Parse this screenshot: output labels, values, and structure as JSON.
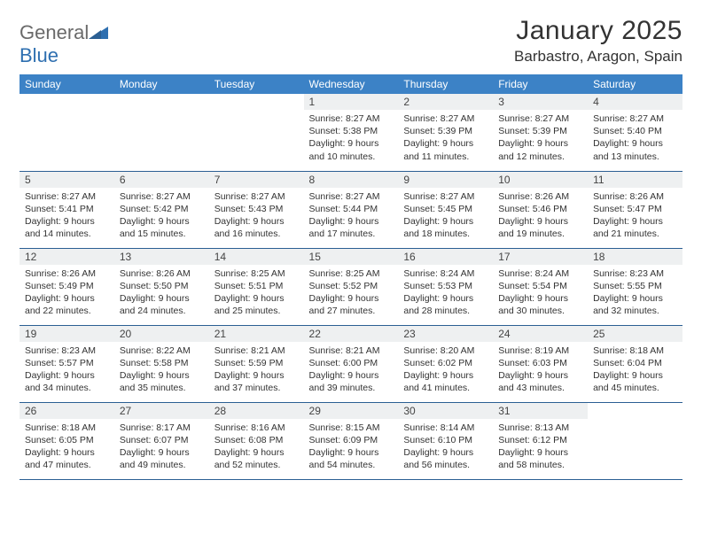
{
  "brand": {
    "part1": "General",
    "part2": "Blue"
  },
  "title": "January 2025",
  "subtitle": "Barbastro, Aragon, Spain",
  "colors": {
    "header_bg": "#3c82c6",
    "row_separator": "#2b5f93",
    "daynum_bg": "#eef0f1",
    "brand_gray": "#6a6a6a",
    "brand_blue": "#2e6fb0",
    "text": "#333333",
    "white": "#ffffff"
  },
  "weekdays": [
    "Sunday",
    "Monday",
    "Tuesday",
    "Wednesday",
    "Thursday",
    "Friday",
    "Saturday"
  ],
  "weeks": [
    [
      {
        "day": "",
        "sunrise": "",
        "sunset": "",
        "daylight": ""
      },
      {
        "day": "",
        "sunrise": "",
        "sunset": "",
        "daylight": ""
      },
      {
        "day": "",
        "sunrise": "",
        "sunset": "",
        "daylight": ""
      },
      {
        "day": "1",
        "sunrise": "Sunrise: 8:27 AM",
        "sunset": "Sunset: 5:38 PM",
        "daylight": "Daylight: 9 hours and 10 minutes."
      },
      {
        "day": "2",
        "sunrise": "Sunrise: 8:27 AM",
        "sunset": "Sunset: 5:39 PM",
        "daylight": "Daylight: 9 hours and 11 minutes."
      },
      {
        "day": "3",
        "sunrise": "Sunrise: 8:27 AM",
        "sunset": "Sunset: 5:39 PM",
        "daylight": "Daylight: 9 hours and 12 minutes."
      },
      {
        "day": "4",
        "sunrise": "Sunrise: 8:27 AM",
        "sunset": "Sunset: 5:40 PM",
        "daylight": "Daylight: 9 hours and 13 minutes."
      }
    ],
    [
      {
        "day": "5",
        "sunrise": "Sunrise: 8:27 AM",
        "sunset": "Sunset: 5:41 PM",
        "daylight": "Daylight: 9 hours and 14 minutes."
      },
      {
        "day": "6",
        "sunrise": "Sunrise: 8:27 AM",
        "sunset": "Sunset: 5:42 PM",
        "daylight": "Daylight: 9 hours and 15 minutes."
      },
      {
        "day": "7",
        "sunrise": "Sunrise: 8:27 AM",
        "sunset": "Sunset: 5:43 PM",
        "daylight": "Daylight: 9 hours and 16 minutes."
      },
      {
        "day": "8",
        "sunrise": "Sunrise: 8:27 AM",
        "sunset": "Sunset: 5:44 PM",
        "daylight": "Daylight: 9 hours and 17 minutes."
      },
      {
        "day": "9",
        "sunrise": "Sunrise: 8:27 AM",
        "sunset": "Sunset: 5:45 PM",
        "daylight": "Daylight: 9 hours and 18 minutes."
      },
      {
        "day": "10",
        "sunrise": "Sunrise: 8:26 AM",
        "sunset": "Sunset: 5:46 PM",
        "daylight": "Daylight: 9 hours and 19 minutes."
      },
      {
        "day": "11",
        "sunrise": "Sunrise: 8:26 AM",
        "sunset": "Sunset: 5:47 PM",
        "daylight": "Daylight: 9 hours and 21 minutes."
      }
    ],
    [
      {
        "day": "12",
        "sunrise": "Sunrise: 8:26 AM",
        "sunset": "Sunset: 5:49 PM",
        "daylight": "Daylight: 9 hours and 22 minutes."
      },
      {
        "day": "13",
        "sunrise": "Sunrise: 8:26 AM",
        "sunset": "Sunset: 5:50 PM",
        "daylight": "Daylight: 9 hours and 24 minutes."
      },
      {
        "day": "14",
        "sunrise": "Sunrise: 8:25 AM",
        "sunset": "Sunset: 5:51 PM",
        "daylight": "Daylight: 9 hours and 25 minutes."
      },
      {
        "day": "15",
        "sunrise": "Sunrise: 8:25 AM",
        "sunset": "Sunset: 5:52 PM",
        "daylight": "Daylight: 9 hours and 27 minutes."
      },
      {
        "day": "16",
        "sunrise": "Sunrise: 8:24 AM",
        "sunset": "Sunset: 5:53 PM",
        "daylight": "Daylight: 9 hours and 28 minutes."
      },
      {
        "day": "17",
        "sunrise": "Sunrise: 8:24 AM",
        "sunset": "Sunset: 5:54 PM",
        "daylight": "Daylight: 9 hours and 30 minutes."
      },
      {
        "day": "18",
        "sunrise": "Sunrise: 8:23 AM",
        "sunset": "Sunset: 5:55 PM",
        "daylight": "Daylight: 9 hours and 32 minutes."
      }
    ],
    [
      {
        "day": "19",
        "sunrise": "Sunrise: 8:23 AM",
        "sunset": "Sunset: 5:57 PM",
        "daylight": "Daylight: 9 hours and 34 minutes."
      },
      {
        "day": "20",
        "sunrise": "Sunrise: 8:22 AM",
        "sunset": "Sunset: 5:58 PM",
        "daylight": "Daylight: 9 hours and 35 minutes."
      },
      {
        "day": "21",
        "sunrise": "Sunrise: 8:21 AM",
        "sunset": "Sunset: 5:59 PM",
        "daylight": "Daylight: 9 hours and 37 minutes."
      },
      {
        "day": "22",
        "sunrise": "Sunrise: 8:21 AM",
        "sunset": "Sunset: 6:00 PM",
        "daylight": "Daylight: 9 hours and 39 minutes."
      },
      {
        "day": "23",
        "sunrise": "Sunrise: 8:20 AM",
        "sunset": "Sunset: 6:02 PM",
        "daylight": "Daylight: 9 hours and 41 minutes."
      },
      {
        "day": "24",
        "sunrise": "Sunrise: 8:19 AM",
        "sunset": "Sunset: 6:03 PM",
        "daylight": "Daylight: 9 hours and 43 minutes."
      },
      {
        "day": "25",
        "sunrise": "Sunrise: 8:18 AM",
        "sunset": "Sunset: 6:04 PM",
        "daylight": "Daylight: 9 hours and 45 minutes."
      }
    ],
    [
      {
        "day": "26",
        "sunrise": "Sunrise: 8:18 AM",
        "sunset": "Sunset: 6:05 PM",
        "daylight": "Daylight: 9 hours and 47 minutes."
      },
      {
        "day": "27",
        "sunrise": "Sunrise: 8:17 AM",
        "sunset": "Sunset: 6:07 PM",
        "daylight": "Daylight: 9 hours and 49 minutes."
      },
      {
        "day": "28",
        "sunrise": "Sunrise: 8:16 AM",
        "sunset": "Sunset: 6:08 PM",
        "daylight": "Daylight: 9 hours and 52 minutes."
      },
      {
        "day": "29",
        "sunrise": "Sunrise: 8:15 AM",
        "sunset": "Sunset: 6:09 PM",
        "daylight": "Daylight: 9 hours and 54 minutes."
      },
      {
        "day": "30",
        "sunrise": "Sunrise: 8:14 AM",
        "sunset": "Sunset: 6:10 PM",
        "daylight": "Daylight: 9 hours and 56 minutes."
      },
      {
        "day": "31",
        "sunrise": "Sunrise: 8:13 AM",
        "sunset": "Sunset: 6:12 PM",
        "daylight": "Daylight: 9 hours and 58 minutes."
      },
      {
        "day": "",
        "sunrise": "",
        "sunset": "",
        "daylight": ""
      }
    ]
  ]
}
